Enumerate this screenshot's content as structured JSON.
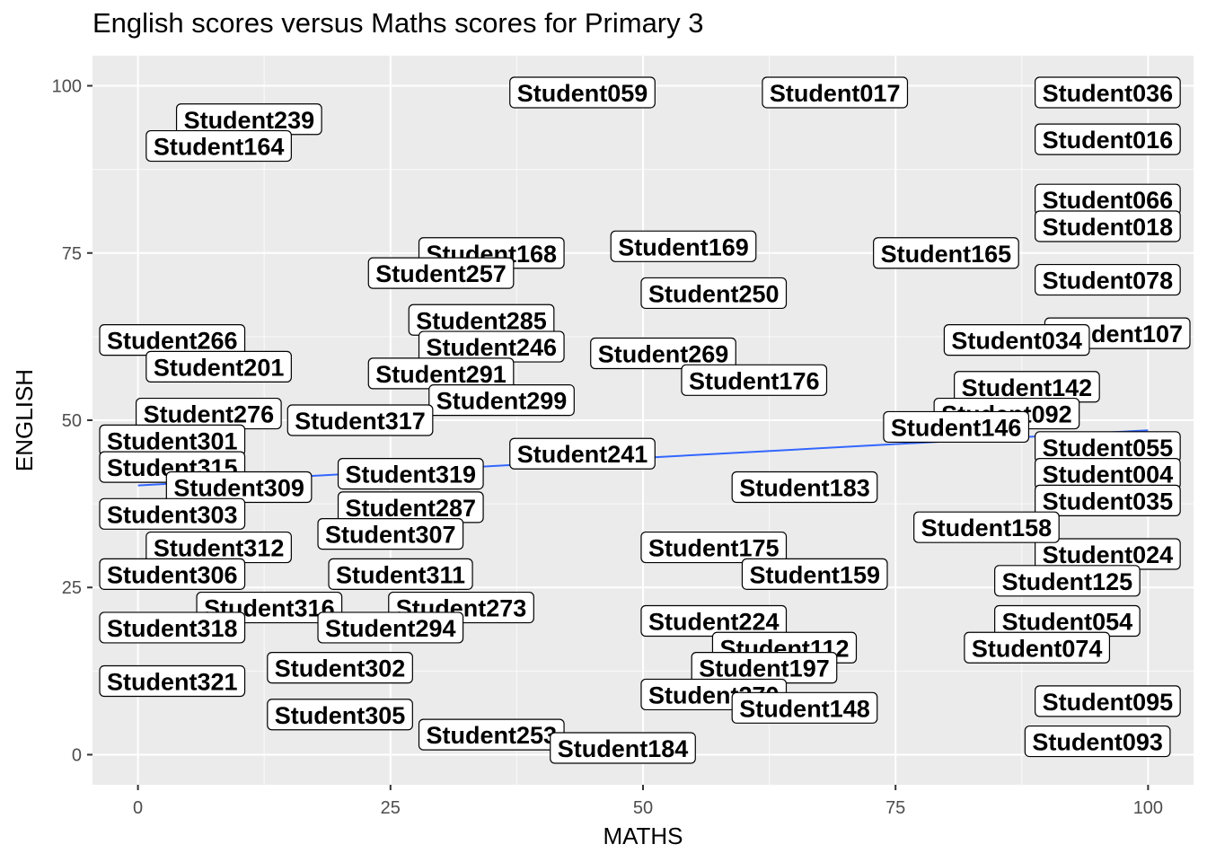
{
  "chart_data": {
    "type": "scatter",
    "title": "English scores versus Maths scores for Primary 3",
    "xlabel": "MATHS",
    "ylabel": "ENGLISH",
    "xlim": [
      -4.5,
      104.5
    ],
    "ylim": [
      -4.5,
      104.5
    ],
    "xticks": [
      0,
      25,
      50,
      75,
      100
    ],
    "yticks": [
      0,
      25,
      50,
      75,
      100
    ],
    "grid": true,
    "panel_background": "#ebebeb",
    "label_fill": "#ffffff",
    "label_border": "#000000",
    "point_color": "#000000",
    "fit_line_color": "#3366ff",
    "points": [
      {
        "label": "Student036",
        "x": 96,
        "y": 99
      },
      {
        "label": "Student016",
        "x": 96,
        "y": 92
      },
      {
        "label": "Student066",
        "x": 96,
        "y": 83
      },
      {
        "label": "Student018",
        "x": 96,
        "y": 79
      },
      {
        "label": "Student078",
        "x": 96,
        "y": 71
      },
      {
        "label": "Student107",
        "x": 97,
        "y": 63
      },
      {
        "label": "Student034",
        "x": 87,
        "y": 62
      },
      {
        "label": "Student142",
        "x": 88,
        "y": 55
      },
      {
        "label": "Student092",
        "x": 86,
        "y": 51
      },
      {
        "label": "Student055",
        "x": 96,
        "y": 46
      },
      {
        "label": "Student004",
        "x": 96,
        "y": 42
      },
      {
        "label": "Student035",
        "x": 96,
        "y": 38
      },
      {
        "label": "Student024",
        "x": 96,
        "y": 30
      },
      {
        "label": "Student125",
        "x": 92,
        "y": 26
      },
      {
        "label": "Student054",
        "x": 92,
        "y": 20
      },
      {
        "label": "Student074",
        "x": 89,
        "y": 16
      },
      {
        "label": "Student095",
        "x": 96,
        "y": 8
      },
      {
        "label": "Student093",
        "x": 95,
        "y": 2
      },
      {
        "label": "Student017",
        "x": 69,
        "y": 99
      },
      {
        "label": "Student059",
        "x": 44,
        "y": 99
      },
      {
        "label": "Student239",
        "x": 11,
        "y": 95
      },
      {
        "label": "Student164",
        "x": 8,
        "y": 91
      },
      {
        "label": "Student169",
        "x": 54,
        "y": 76
      },
      {
        "label": "Student168",
        "x": 35,
        "y": 75
      },
      {
        "label": "Student165",
        "x": 80,
        "y": 75
      },
      {
        "label": "Student257",
        "x": 30,
        "y": 72
      },
      {
        "label": "Student250",
        "x": 57,
        "y": 69
      },
      {
        "label": "Student285",
        "x": 34,
        "y": 65
      },
      {
        "label": "Student266",
        "x": 3,
        "y": 62
      },
      {
        "label": "Student246",
        "x": 35,
        "y": 61
      },
      {
        "label": "Student269",
        "x": 52,
        "y": 60
      },
      {
        "label": "Student201",
        "x": 8,
        "y": 58
      },
      {
        "label": "Student291",
        "x": 30,
        "y": 57
      },
      {
        "label": "Student176",
        "x": 61,
        "y": 56
      },
      {
        "label": "Student299",
        "x": 36,
        "y": 53
      },
      {
        "label": "Student276",
        "x": 7,
        "y": 51
      },
      {
        "label": "Student317",
        "x": 22,
        "y": 50
      },
      {
        "label": "Student301",
        "x": 3,
        "y": 47
      },
      {
        "label": "Student146",
        "x": 81,
        "y": 49
      },
      {
        "label": "Student241",
        "x": 44,
        "y": 45
      },
      {
        "label": "Student315",
        "x": 3,
        "y": 43
      },
      {
        "label": "Student319",
        "x": 27,
        "y": 42
      },
      {
        "label": "Student309",
        "x": 10,
        "y": 40
      },
      {
        "label": "Student183",
        "x": 66,
        "y": 40
      },
      {
        "label": "Student287",
        "x": 27,
        "y": 37
      },
      {
        "label": "Student303",
        "x": 3,
        "y": 36
      },
      {
        "label": "Student158",
        "x": 84,
        "y": 34
      },
      {
        "label": "Student307",
        "x": 25,
        "y": 33
      },
      {
        "label": "Student312",
        "x": 8,
        "y": 31
      },
      {
        "label": "Student175",
        "x": 57,
        "y": 31
      },
      {
        "label": "Student306",
        "x": 3,
        "y": 27
      },
      {
        "label": "Student311",
        "x": 26,
        "y": 27
      },
      {
        "label": "Student159",
        "x": 67,
        "y": 27
      },
      {
        "label": "Student316",
        "x": 13,
        "y": 22
      },
      {
        "label": "Student273",
        "x": 32,
        "y": 22
      },
      {
        "label": "Student318",
        "x": 3,
        "y": 19
      },
      {
        "label": "Student294",
        "x": 25,
        "y": 19
      },
      {
        "label": "Student224",
        "x": 57,
        "y": 20
      },
      {
        "label": "Student112",
        "x": 64,
        "y": 16
      },
      {
        "label": "Student302",
        "x": 20,
        "y": 13
      },
      {
        "label": "Student197",
        "x": 62,
        "y": 13
      },
      {
        "label": "Student321",
        "x": 3,
        "y": 11
      },
      {
        "label": "Student270",
        "x": 57,
        "y": 9
      },
      {
        "label": "Student148",
        "x": 66,
        "y": 7
      },
      {
        "label": "Student305",
        "x": 20,
        "y": 6
      },
      {
        "label": "Student253",
        "x": 35,
        "y": 3
      },
      {
        "label": "Student184",
        "x": 48,
        "y": 1
      }
    ]
  }
}
